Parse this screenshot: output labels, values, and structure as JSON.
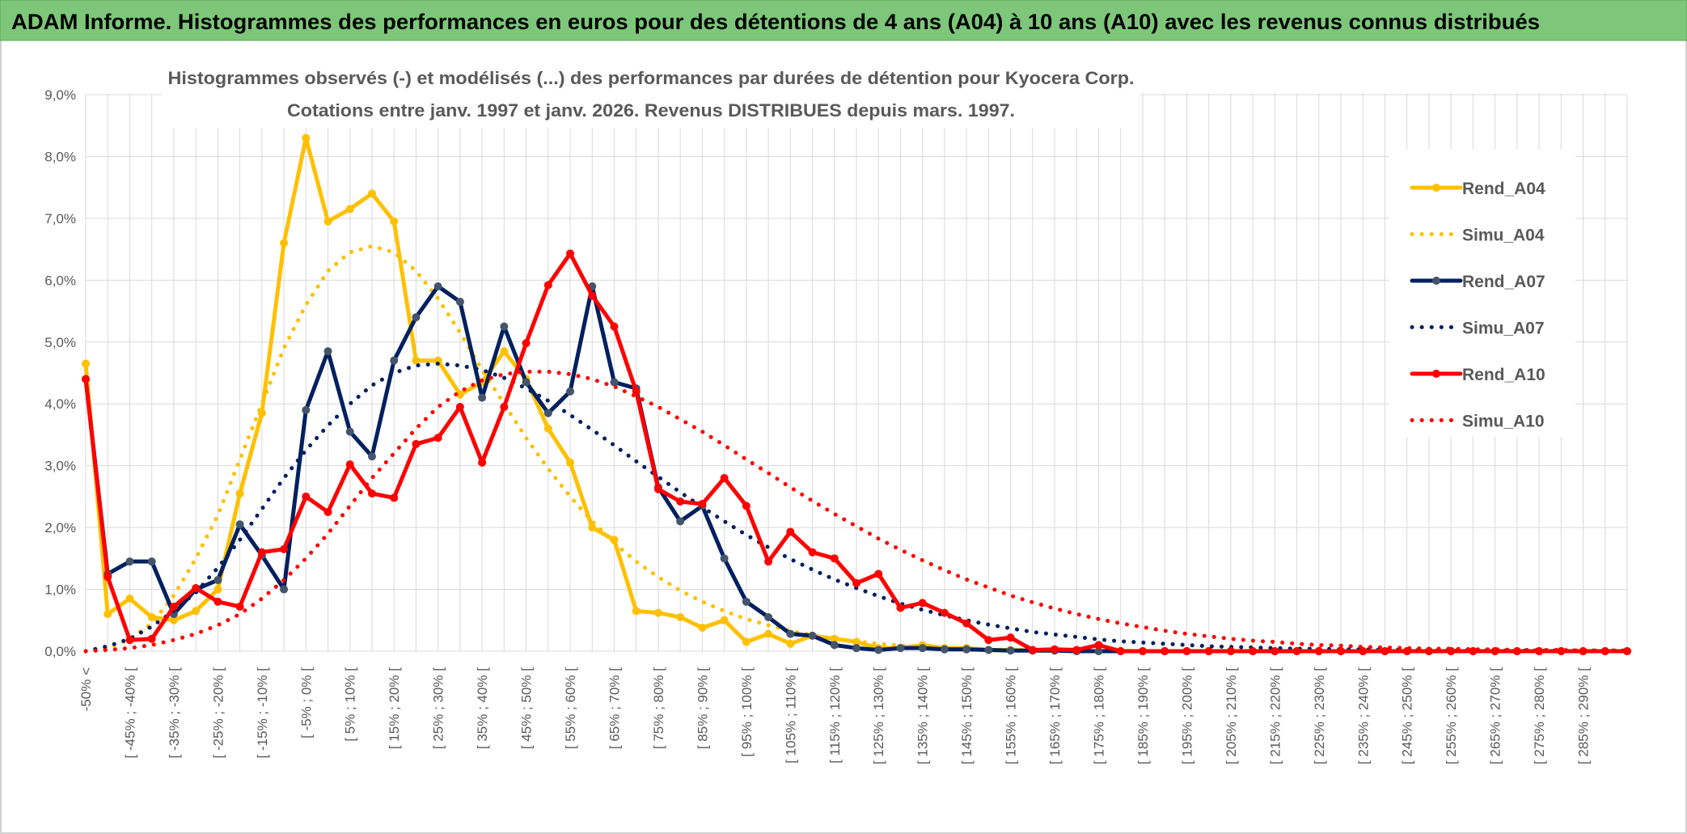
{
  "chart_data": {
    "type": "line",
    "title": "ADAM Informe. Histogrammes des performances en euros pour des détentions de 4 ans (A04) à 10 ans (A10) avec les revenus connus distribués",
    "subtitle": [
      "Histogrammes observés (-) et modélisés (...) des performances par durées de détention pour Kyocera Corp.",
      "Cotations entre janv. 1997 et janv. 2026. Revenus DISTRIBUES depuis mars. 1997."
    ],
    "categories": [
      "-50% <",
      null,
      "[ -45% ; -40% [",
      null,
      "[ -35% ; -30% [",
      null,
      "[ -25% ; -20% [",
      null,
      "[ -15% ; -10% [",
      null,
      "[ -5% ; 0% [",
      null,
      "[ 5% ; 10% [",
      null,
      "[ 15% ; 20% [",
      null,
      "[ 25% ; 30% [",
      null,
      "[ 35% ; 40% [",
      null,
      "[ 45% ; 50% [",
      null,
      "[ 55% ; 60% [",
      null,
      "[ 65% ; 70% [",
      null,
      "[ 75% ; 80% [",
      null,
      "[ 85% ; 90% [",
      null,
      "[ 95% ; 100% [",
      null,
      "[ 105% ; 110% [",
      null,
      "[ 115% ; 120% [",
      null,
      "[ 125% ; 130% [",
      null,
      "[ 135% ; 140% [",
      null,
      "[ 145% ; 150% [",
      null,
      "[ 155% ; 160% [",
      null,
      "[ 165% ; 170% [",
      null,
      "[ 175% ; 180% [",
      null,
      "[ 185% ; 190% [",
      null,
      "[ 195% ; 200% [",
      null,
      "[ 205% ; 210% [",
      null,
      "[ 215% ; 220% [",
      null,
      "[ 225% ; 230% [",
      null,
      "[ 235% ; 240% [",
      null,
      "[ 245% ; 250% [",
      null,
      "[ 255% ; 260% [",
      null,
      "[ 265% ; 270% [",
      null,
      "[ 275% ; 280% [",
      null,
      "[ 285% ; 290% [",
      null,
      null
    ],
    "series": [
      {
        "name": "Rend_A04",
        "color": "#FFC000",
        "line_style": "solid",
        "markers": true,
        "values": [
          4.65,
          0.6,
          0.85,
          0.55,
          0.5,
          0.65,
          1.0,
          2.55,
          3.85,
          6.6,
          8.3,
          6.95,
          7.15,
          7.4,
          6.95,
          4.7,
          4.7,
          4.15,
          4.35,
          4.85,
          4.4,
          3.6,
          3.05,
          2.0,
          1.8,
          0.65,
          0.62,
          0.55,
          0.38,
          0.5,
          0.15,
          0.28,
          0.12,
          0.25,
          0.2,
          0.15,
          0.05,
          0.05,
          0.1,
          0.05,
          0.05,
          0.02,
          0.02,
          0.01,
          0.01,
          0,
          0,
          0,
          0,
          0,
          0,
          0,
          0,
          0,
          0,
          0,
          0,
          0,
          0,
          0,
          0,
          0,
          0,
          0,
          0,
          0,
          0,
          0,
          0,
          0,
          0
        ]
      },
      {
        "name": "Simu_A04",
        "color": "#FFC000",
        "line_style": "dotted",
        "markers": false,
        "values": [
          0,
          0.05,
          0.2,
          0.45,
          0.9,
          1.5,
          2.2,
          3.1,
          4.0,
          4.9,
          5.6,
          6.15,
          6.45,
          6.55,
          6.45,
          6.15,
          5.7,
          5.15,
          4.55,
          4.0,
          3.45,
          2.95,
          2.5,
          2.1,
          1.75,
          1.45,
          1.2,
          0.98,
          0.8,
          0.65,
          0.52,
          0.42,
          0.33,
          0.26,
          0.2,
          0.16,
          0.12,
          0.09,
          0.07,
          0.05,
          0.04,
          0.03,
          0.02,
          0.02,
          0.01,
          0.01,
          0.01,
          0.01,
          0,
          0,
          0,
          0,
          0,
          0,
          0,
          0,
          0,
          0,
          0,
          0,
          0,
          0,
          0,
          0,
          0,
          0,
          0,
          0,
          0,
          0,
          0
        ]
      },
      {
        "name": "Rend_A07",
        "color": "#002060",
        "marker_color": "#44546A",
        "line_style": "solid",
        "markers": true,
        "values": [
          4.4,
          1.25,
          1.45,
          1.45,
          0.6,
          1.0,
          1.15,
          2.05,
          1.55,
          1.0,
          3.9,
          4.85,
          3.55,
          3.15,
          4.7,
          5.4,
          5.9,
          5.65,
          4.1,
          5.25,
          4.35,
          3.85,
          4.2,
          5.9,
          4.35,
          4.25,
          2.65,
          2.1,
          2.35,
          1.5,
          0.8,
          0.55,
          0.28,
          0.25,
          0.1,
          0.05,
          0.02,
          0.05,
          0.05,
          0.03,
          0.03,
          0.02,
          0.01,
          0.01,
          0.01,
          0,
          0,
          0,
          0,
          0,
          0,
          0,
          0,
          0,
          0,
          0,
          0,
          0,
          0,
          0,
          0,
          0,
          0,
          0,
          0,
          0,
          0,
          0,
          0,
          0,
          0
        ]
      },
      {
        "name": "Simu_A07",
        "color": "#002060",
        "line_style": "dotted",
        "markers": false,
        "values": [
          0,
          0.08,
          0.2,
          0.4,
          0.65,
          0.95,
          1.35,
          1.8,
          2.3,
          2.8,
          3.25,
          3.65,
          4.0,
          4.3,
          4.5,
          4.62,
          4.65,
          4.62,
          4.55,
          4.42,
          4.25,
          4.05,
          3.82,
          3.58,
          3.33,
          3.07,
          2.82,
          2.57,
          2.33,
          2.1,
          1.88,
          1.68,
          1.49,
          1.32,
          1.16,
          1.02,
          0.89,
          0.77,
          0.67,
          0.58,
          0.5,
          0.43,
          0.37,
          0.31,
          0.27,
          0.23,
          0.19,
          0.16,
          0.14,
          0.12,
          0.1,
          0.08,
          0.07,
          0.06,
          0.05,
          0.04,
          0.04,
          0.03,
          0.03,
          0.02,
          0.02,
          0.01,
          0.01,
          0.01,
          0.01,
          0.01,
          0.01,
          0.01,
          0.01,
          0.01,
          0.01
        ]
      },
      {
        "name": "Rend_A10",
        "color": "#FF0000",
        "line_style": "solid",
        "markers": true,
        "values": [
          4.4,
          1.2,
          0.18,
          0.2,
          0.72,
          1.02,
          0.8,
          0.72,
          1.6,
          1.65,
          2.5,
          2.25,
          3.02,
          2.55,
          2.48,
          3.35,
          3.45,
          3.95,
          3.05,
          3.95,
          4.98,
          5.92,
          6.43,
          5.75,
          5.25,
          4.2,
          2.62,
          2.42,
          2.38,
          2.8,
          2.35,
          1.45,
          1.93,
          1.6,
          1.5,
          1.1,
          1.25,
          0.7,
          0.78,
          0.62,
          0.45,
          0.18,
          0.22,
          0.02,
          0.03,
          0.02,
          0.1,
          0,
          0,
          0,
          0,
          0,
          0,
          0,
          0,
          0,
          0,
          0,
          0,
          0,
          0,
          0,
          0,
          0,
          0,
          0,
          0,
          0,
          0,
          0,
          0
        ]
      },
      {
        "name": "Simu_A10",
        "color": "#FF0000",
        "line_style": "dotted",
        "markers": false,
        "values": [
          0,
          0.02,
          0.05,
          0.1,
          0.18,
          0.28,
          0.42,
          0.6,
          0.85,
          1.15,
          1.5,
          1.9,
          2.35,
          2.8,
          3.2,
          3.6,
          3.95,
          4.2,
          4.38,
          4.48,
          4.52,
          4.52,
          4.48,
          4.4,
          4.28,
          4.12,
          3.95,
          3.75,
          3.55,
          3.33,
          3.1,
          2.88,
          2.65,
          2.43,
          2.22,
          2.02,
          1.82,
          1.64,
          1.47,
          1.31,
          1.16,
          1.03,
          0.9,
          0.79,
          0.69,
          0.6,
          0.52,
          0.45,
          0.39,
          0.33,
          0.28,
          0.24,
          0.2,
          0.17,
          0.15,
          0.12,
          0.1,
          0.09,
          0.07,
          0.06,
          0.05,
          0.04,
          0.04,
          0.03,
          0.03,
          0.02,
          0.02,
          0.02,
          0.01,
          0.01,
          0.01
        ]
      }
    ],
    "ylim": [
      0,
      9
    ],
    "yticks": [
      {
        "value": 0,
        "label": "0,0%"
      },
      {
        "value": 1,
        "label": "1,0%"
      },
      {
        "value": 2,
        "label": "2,0%"
      },
      {
        "value": 3,
        "label": "3,0%"
      },
      {
        "value": 4,
        "label": "4,0%"
      },
      {
        "value": 5,
        "label": "5,0%"
      },
      {
        "value": 6,
        "label": "6,0%"
      },
      {
        "value": 7,
        "label": "7,0%"
      },
      {
        "value": 8,
        "label": "8,0%"
      },
      {
        "value": 9,
        "label": "9,0%"
      }
    ],
    "grid": true,
    "legend": "right"
  }
}
